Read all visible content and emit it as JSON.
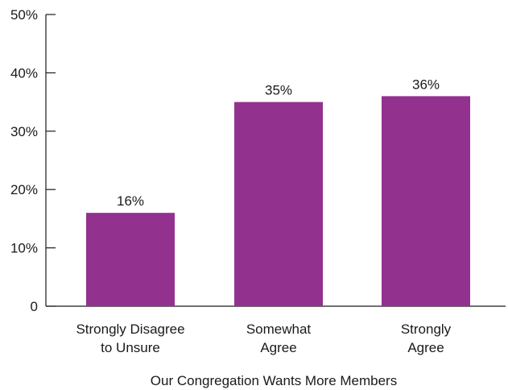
{
  "chart_data": {
    "type": "bar",
    "categories": [
      [
        "Strongly Disagree",
        "to Unsure"
      ],
      [
        "Somewhat",
        "Agree"
      ],
      [
        "Strongly",
        "Agree"
      ]
    ],
    "values": [
      16,
      35,
      36
    ],
    "data_labels": [
      "16%",
      "35%",
      "36%"
    ],
    "title": "",
    "xlabel": "Our Congregation Wants More Members",
    "ylabel": "",
    "ylim": [
      0,
      50
    ],
    "yticks": [
      0,
      10,
      20,
      30,
      40,
      50
    ],
    "ytick_labels": [
      "0",
      "10%",
      "20%",
      "30%",
      "40%",
      "50%"
    ],
    "grid": false,
    "legend": "none",
    "bar_color": "#93318f"
  }
}
